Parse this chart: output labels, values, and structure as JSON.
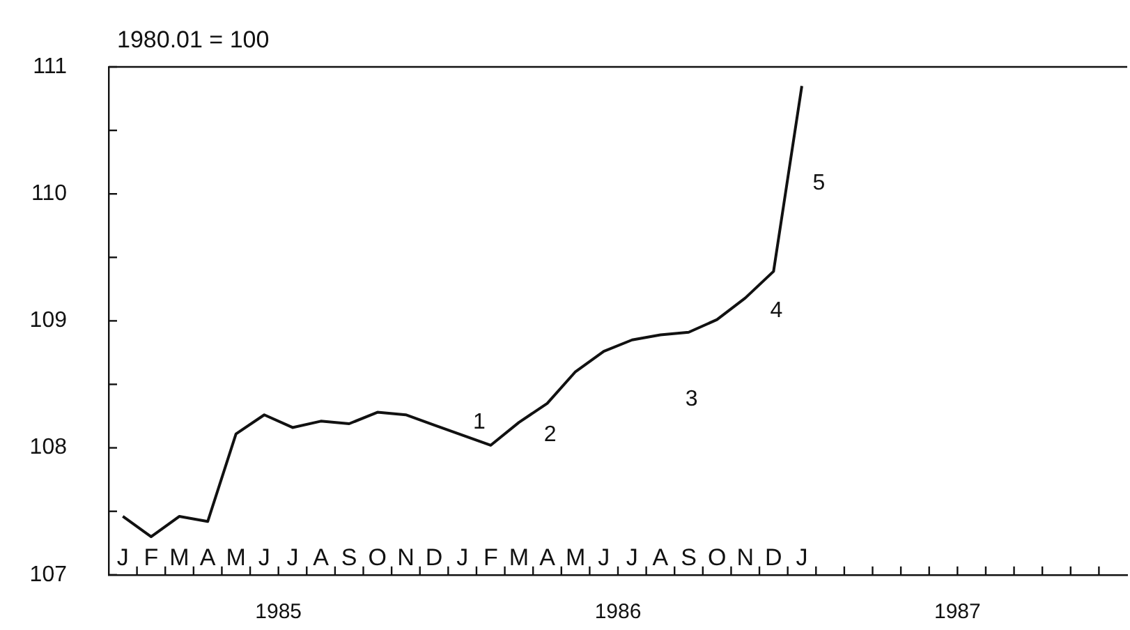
{
  "chart_data": {
    "type": "line",
    "ylabel": "1980.01 = 100",
    "categories": [
      "J",
      "F",
      "M",
      "A",
      "M",
      "J",
      "J",
      "A",
      "S",
      "O",
      "N",
      "D",
      "J",
      "F",
      "M",
      "A",
      "M",
      "J",
      "J",
      "A",
      "S",
      "O",
      "N",
      "D",
      "J",
      null,
      null,
      null,
      null,
      null,
      null,
      null,
      null,
      null,
      null,
      null
    ],
    "series": [
      {
        "color": "#111111",
        "values": [
          107.46,
          107.3,
          107.46,
          107.42,
          108.11,
          108.26,
          108.16,
          108.21,
          108.19,
          108.28,
          108.26,
          108.18,
          108.1,
          108.02,
          108.2,
          108.35,
          108.6,
          108.76,
          108.85,
          108.89,
          108.91,
          109.01,
          109.18,
          109.39,
          110.85,
          null,
          null,
          null,
          null,
          null,
          null,
          null,
          null,
          null,
          null,
          null
        ]
      }
    ],
    "ylim": [
      107,
      111
    ],
    "yticks": [
      107,
      {
        "value": 107.5,
        "label": null
      },
      108,
      {
        "value": 108.5,
        "label": null
      },
      109,
      {
        "value": 109.5,
        "label": null
      },
      110,
      {
        "value": 110.5,
        "label": null
      },
      111
    ],
    "annotations": [
      "1",
      "2",
      "3",
      "4",
      "5",
      "1985",
      "1986",
      "1987"
    ],
    "marker": "none",
    "line_style": "solid",
    "grid": false,
    "legend": false
  }
}
